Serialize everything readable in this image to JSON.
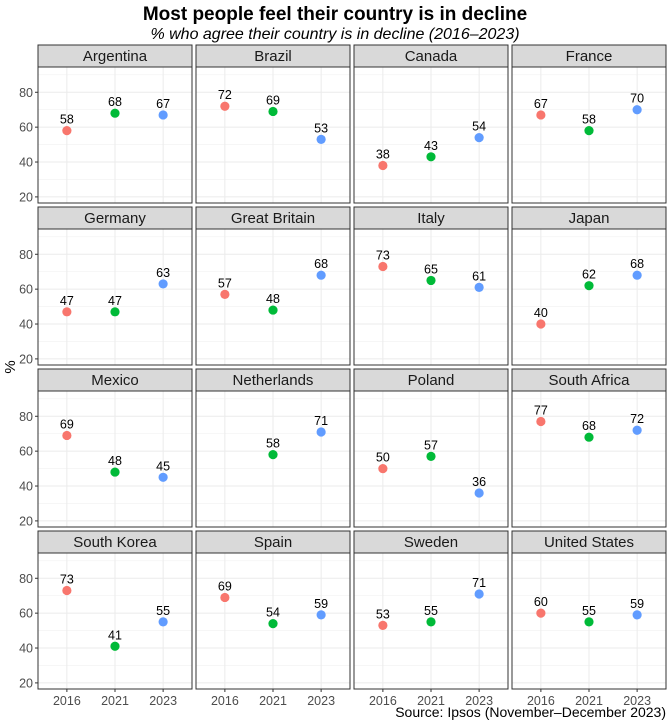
{
  "chart_data": {
    "type": "scatter",
    "title": "Most people feel their country is in decline",
    "subtitle": "% who agree their country is in decline (2016–2023)",
    "ylabel": "%",
    "xlabel": "",
    "caption": "Source: Ipsos (November–December 2023)",
    "categories": [
      "2016",
      "2021",
      "2023"
    ],
    "yticks": [
      20,
      40,
      60,
      80
    ],
    "ylim": [
      16.5,
      94.5
    ],
    "grid": true,
    "legend": "none",
    "series_colors": {
      "2016": "#F8766D",
      "2021": "#00BA38",
      "2023": "#619CFF"
    },
    "panels": [
      {
        "name": "Argentina",
        "values": [
          58,
          68,
          67
        ]
      },
      {
        "name": "Brazil",
        "values": [
          72,
          69,
          53
        ]
      },
      {
        "name": "Canada",
        "values": [
          38,
          43,
          54
        ]
      },
      {
        "name": "France",
        "values": [
          67,
          58,
          70
        ]
      },
      {
        "name": "Germany",
        "values": [
          47,
          47,
          63
        ]
      },
      {
        "name": "Great Britain",
        "values": [
          57,
          48,
          68
        ]
      },
      {
        "name": "Italy",
        "values": [
          73,
          65,
          61
        ]
      },
      {
        "name": "Japan",
        "values": [
          40,
          62,
          68
        ]
      },
      {
        "name": "Mexico",
        "values": [
          69,
          48,
          45
        ]
      },
      {
        "name": "Netherlands",
        "values": [
          null,
          58,
          71
        ]
      },
      {
        "name": "Poland",
        "values": [
          50,
          57,
          36
        ]
      },
      {
        "name": "South Africa",
        "values": [
          77,
          68,
          72
        ]
      },
      {
        "name": "South Korea",
        "values": [
          73,
          41,
          55
        ]
      },
      {
        "name": "Spain",
        "values": [
          69,
          54,
          59
        ]
      },
      {
        "name": "Sweden",
        "values": [
          53,
          55,
          71
        ]
      },
      {
        "name": "United States",
        "values": [
          60,
          55,
          59
        ]
      }
    ]
  }
}
